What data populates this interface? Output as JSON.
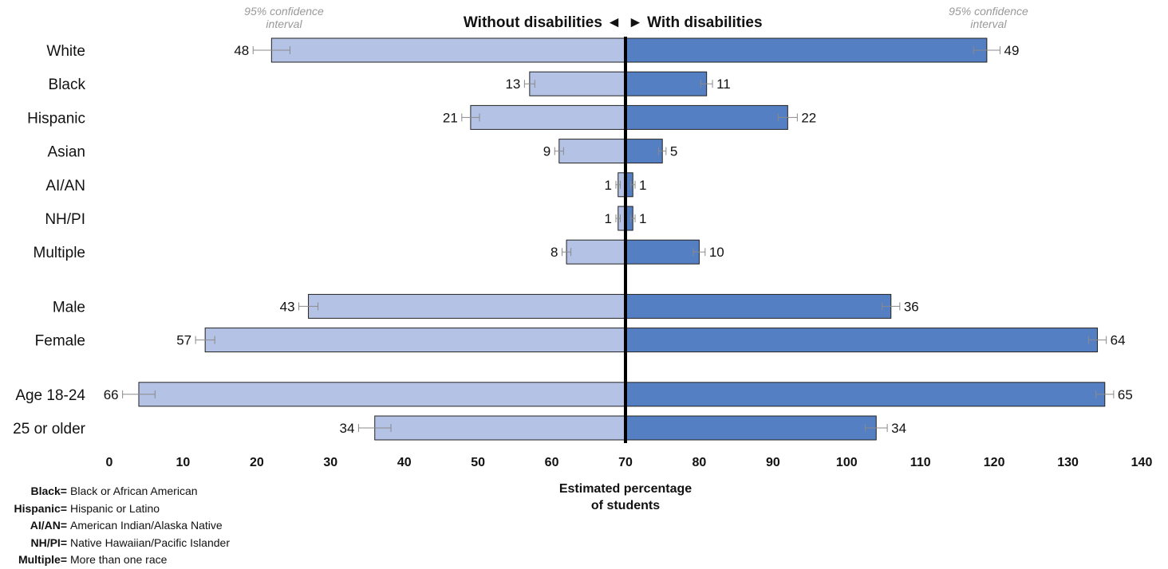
{
  "chart_data": {
    "type": "bar",
    "orientation": "horizontal",
    "title_left": "Without disabilities ◄",
    "title_right": "► With disabilities",
    "ci_note_left": [
      "95% confidence",
      "interval"
    ],
    "ci_note_right": [
      "95% confidence",
      "interval"
    ],
    "xlabel": [
      "Estimated percentage",
      "of students"
    ],
    "xlim": [
      0,
      140
    ],
    "divider_at": 70,
    "xticks": [
      "0",
      "10",
      "20",
      "30",
      "40",
      "50",
      "60",
      "70",
      "80",
      "90",
      "100",
      "110",
      "120",
      "130",
      "140"
    ],
    "categories": [
      "White",
      "Black",
      "Hispanic",
      "Asian",
      "AI/AN",
      "NH/PI",
      "Multiple",
      "Male",
      "Female",
      "Age 18-24",
      "25 or older"
    ],
    "groups": [
      0,
      0,
      0,
      0,
      0,
      0,
      0,
      1,
      1,
      2,
      2
    ],
    "series": [
      {
        "name": "Without disabilities",
        "color": "#b4c2e6",
        "values": [
          48,
          13,
          21,
          9,
          1,
          1,
          8,
          43,
          57,
          66,
          34
        ],
        "labels": [
          "48",
          "13",
          "21",
          "9",
          "1",
          "1",
          "8",
          "43",
          "57",
          "66",
          "34"
        ],
        "ci": [
          [
            45.5,
            50.5
          ],
          [
            12.3,
            13.7
          ],
          [
            19.8,
            22.2
          ],
          [
            8.4,
            9.6
          ],
          [
            0.7,
            1.3
          ],
          [
            0.7,
            1.3
          ],
          [
            7.4,
            8.6
          ],
          [
            41.7,
            44.3
          ],
          [
            55.7,
            58.3
          ],
          [
            63.8,
            68.2
          ],
          [
            31.8,
            36.2
          ]
        ]
      },
      {
        "name": "With disabilities",
        "color": "#557fc3",
        "values": [
          49,
          11,
          22,
          5,
          1,
          1,
          10,
          36,
          64,
          65,
          34
        ],
        "labels": [
          "49",
          "11",
          "22",
          "5",
          "1",
          "1",
          "10",
          "36",
          "64",
          "65",
          "34"
        ],
        "ci": [
          [
            47.2,
            50.8
          ],
          [
            10.2,
            11.8
          ],
          [
            20.7,
            23.3
          ],
          [
            4.5,
            5.5
          ],
          [
            0.7,
            1.3
          ],
          [
            0.7,
            1.3
          ],
          [
            9.2,
            10.8
          ],
          [
            34.8,
            37.2
          ],
          [
            62.8,
            65.2
          ],
          [
            63.8,
            66.2
          ],
          [
            32.5,
            35.5
          ]
        ]
      }
    ]
  },
  "legend": [
    {
      "key": "Black=",
      "value": "Black or African American"
    },
    {
      "key": "Hispanic=",
      "value": "Hispanic or Latino"
    },
    {
      "key": "AI/AN=",
      "value": "American Indian/Alaska Native"
    },
    {
      "key": "NH/PI=",
      "value": "Native Hawaiian/Pacific Islander"
    },
    {
      "key": "Multiple=",
      "value": "More than one race"
    }
  ]
}
